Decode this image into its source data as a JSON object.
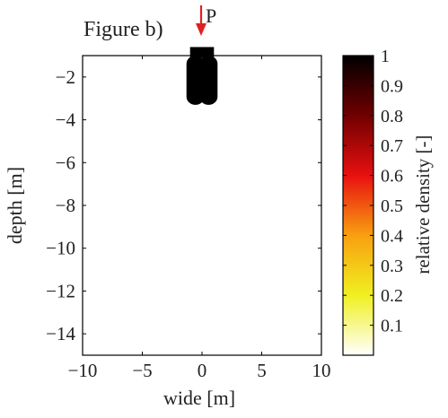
{
  "chart_data": {
    "type": "heatmap",
    "title": "Figure b)",
    "load_label": "P",
    "xlabel": "wide [m]",
    "ylabel": "depth [m]",
    "xlim": [
      -10,
      10
    ],
    "ylim": [
      -15,
      -1
    ],
    "x_ticks": [
      -10,
      -5,
      0,
      5,
      10
    ],
    "y_ticks": [
      -2,
      -4,
      -6,
      -8,
      -10,
      -12,
      -14
    ],
    "x_tick_labels": [
      "−10",
      "−5",
      "0",
      "5",
      "10"
    ],
    "y_tick_labels": [
      "−2",
      "−4",
      "−6",
      "−8",
      "−10",
      "−12",
      "−14"
    ],
    "colorbar": {
      "label": "relative density [-]",
      "range": [
        0,
        1
      ],
      "ticks": [
        0.1,
        0.2,
        0.3,
        0.4,
        0.5,
        0.6,
        0.7,
        0.8,
        0.9,
        1
      ],
      "tick_labels": [
        "0.1",
        "0.2",
        "0.3",
        "0.4",
        "0.5",
        "0.6",
        "0.7",
        "0.8",
        "0.9",
        "1"
      ],
      "colormap": [
        "#ffffff",
        "#f0f020",
        "#f8a010",
        "#e81010",
        "#700000",
        "#000000"
      ]
    },
    "footing": {
      "x_range": [
        -1,
        1
      ],
      "y_range": [
        -1.0,
        -0.6
      ],
      "color": "#000000"
    },
    "dense_regions": [
      {
        "name": "left-lobe",
        "x_range": [
          -1.3,
          0.2
        ],
        "y_range": [
          -3.3,
          -1.0
        ],
        "relative_density": 1.0
      },
      {
        "name": "right-lobe",
        "x_range": [
          -0.2,
          1.3
        ],
        "y_range": [
          -3.3,
          -1.0
        ],
        "relative_density": 1.0
      }
    ],
    "load_arrow_color": "#e02020",
    "grid": false
  }
}
